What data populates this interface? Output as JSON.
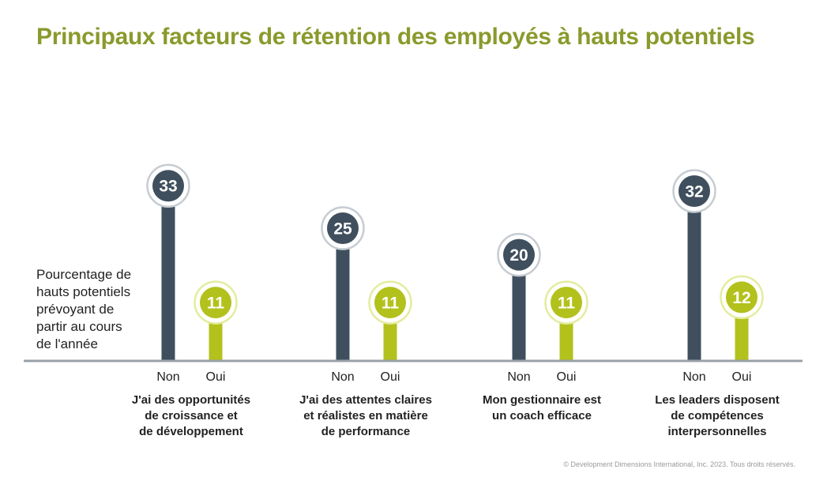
{
  "chart_data": {
    "type": "bar",
    "title": "Principaux facteurs de rétention des employés à hauts potentiels",
    "ylabel": "Pourcentage de\nhauts potentiels\nprévoyant de\npartir au cours\nde l'année",
    "categories": [
      "J'ai des opportunités\nde croissance et\nde développement",
      "J'ai des attentes claires\net réalistes en matière\nde performance",
      "Mon gestionnaire est\nun coach efficace",
      "Les leaders disposent\nde compétences\ninterpersonnelles"
    ],
    "series": [
      {
        "name": "Non",
        "values": [
          33,
          25,
          20,
          32
        ],
        "color": "#3f4f5e"
      },
      {
        "name": "Oui",
        "values": [
          11,
          11,
          11,
          12
        ],
        "color": "#b3c11c"
      }
    ],
    "ylim": [
      0,
      40
    ],
    "grid": false,
    "legend": "none"
  },
  "copyright": "© Development Dimensions International, Inc. 2023. Tous droits réservés."
}
